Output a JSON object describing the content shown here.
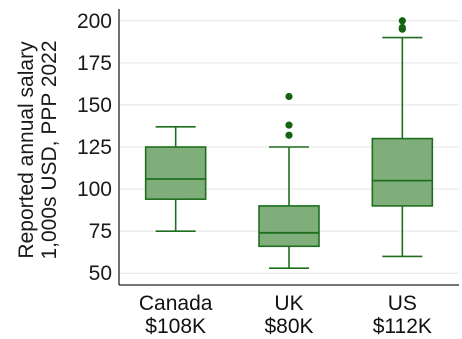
{
  "chart_data": {
    "type": "box",
    "ylabel_lines": [
      "Reported annual salary",
      "1,000s USD, PPP 2022"
    ],
    "ylim": [
      43,
      207
    ],
    "yticks": [
      50,
      75,
      100,
      125,
      150,
      175,
      200
    ],
    "grid": true,
    "categories": [
      {
        "name": "Canada",
        "sublabel": "$108K",
        "whisker_low": 75,
        "q1": 94,
        "median": 106,
        "q3": 125,
        "whisker_high": 137,
        "outliers": []
      },
      {
        "name": "UK",
        "sublabel": "$80K",
        "whisker_low": 53,
        "q1": 66,
        "median": 74,
        "q3": 90,
        "whisker_high": 125,
        "outliers": [
          132,
          138,
          155
        ]
      },
      {
        "name": "US",
        "sublabel": "$112K",
        "whisker_low": 60,
        "q1": 90,
        "median": 105,
        "q3": 130,
        "whisker_high": 190,
        "outliers": [
          195,
          196,
          200
        ]
      }
    ],
    "colors": {
      "box_fill": "#7fae7a",
      "box_stroke": "#1f6e1f",
      "outlier": "#136313",
      "grid": "#e4e4e4"
    }
  }
}
